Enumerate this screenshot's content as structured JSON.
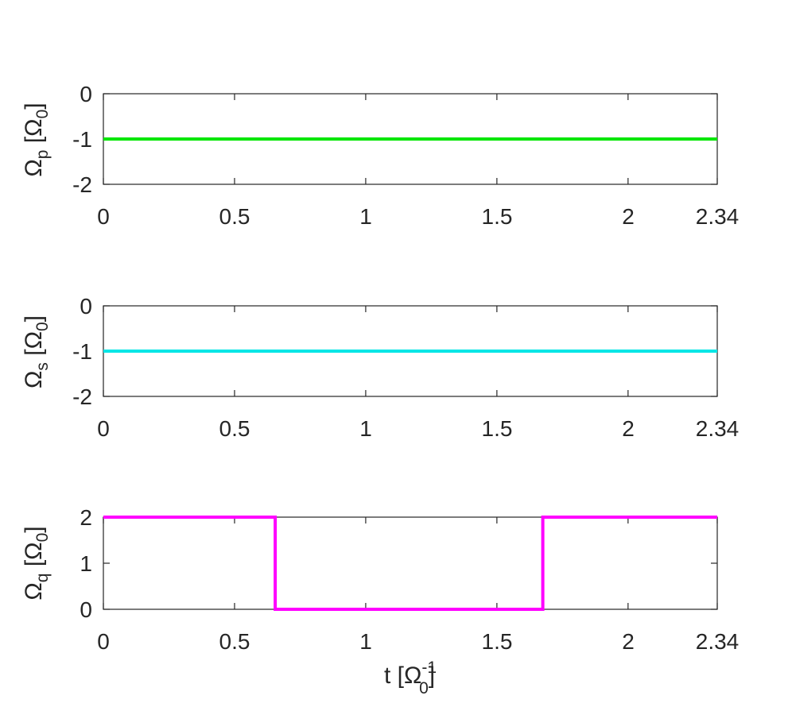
{
  "chart_data": [
    {
      "type": "line",
      "ylabel": {
        "sym": "Ω",
        "sub": "p",
        "unit_open": " [Ω",
        "unit_sub": "0",
        "unit_close": "]"
      },
      "xlim": [
        0,
        2.34
      ],
      "ylim": [
        -2,
        0
      ],
      "xticks": [
        0,
        0.5,
        1,
        1.5,
        2,
        2.34
      ],
      "xtick_labels": [
        "0",
        "0.5",
        "1",
        "1.5",
        "2",
        "2.34"
      ],
      "yticks": [
        0,
        -1,
        -2
      ],
      "ytick_labels": [
        "0",
        "-1",
        "-2"
      ],
      "grid": false,
      "series": [
        {
          "color": "#00e600",
          "x": [
            0,
            2.34
          ],
          "y": [
            -1,
            -1
          ]
        }
      ]
    },
    {
      "type": "line",
      "ylabel": {
        "sym": "Ω",
        "sub": "s",
        "unit_open": " [Ω",
        "unit_sub": "0",
        "unit_close": "]"
      },
      "xlim": [
        0,
        2.34
      ],
      "ylim": [
        -2,
        0
      ],
      "xticks": [
        0,
        0.5,
        1,
        1.5,
        2,
        2.34
      ],
      "xtick_labels": [
        "0",
        "0.5",
        "1",
        "1.5",
        "2",
        "2.34"
      ],
      "yticks": [
        0,
        -1,
        -2
      ],
      "ytick_labels": [
        "0",
        "-1",
        "-2"
      ],
      "grid": false,
      "series": [
        {
          "color": "#00e6e6",
          "x": [
            0,
            2.34
          ],
          "y": [
            -1,
            -1
          ]
        }
      ]
    },
    {
      "type": "line",
      "ylabel": {
        "sym": "Ω",
        "sub": "q",
        "unit_open": " [Ω",
        "unit_sub": "0",
        "unit_close": "]"
      },
      "xlabel": {
        "sym": "t [Ω",
        "sup": "-1",
        "sub": "0",
        "close": "]"
      },
      "xlim": [
        0,
        2.34
      ],
      "ylim": [
        0,
        2
      ],
      "xticks": [
        0,
        0.5,
        1,
        1.5,
        2,
        2.34
      ],
      "xtick_labels": [
        "0",
        "0.5",
        "1",
        "1.5",
        "2",
        "2.34"
      ],
      "yticks": [
        2,
        1,
        0
      ],
      "ytick_labels": [
        "2",
        "1",
        "0"
      ],
      "grid": false,
      "series": [
        {
          "color": "#ff00ff",
          "x": [
            0,
            0.655,
            0.655,
            1.675,
            1.675,
            2.34
          ],
          "y": [
            2,
            2,
            0,
            0,
            2,
            2
          ]
        }
      ]
    }
  ]
}
